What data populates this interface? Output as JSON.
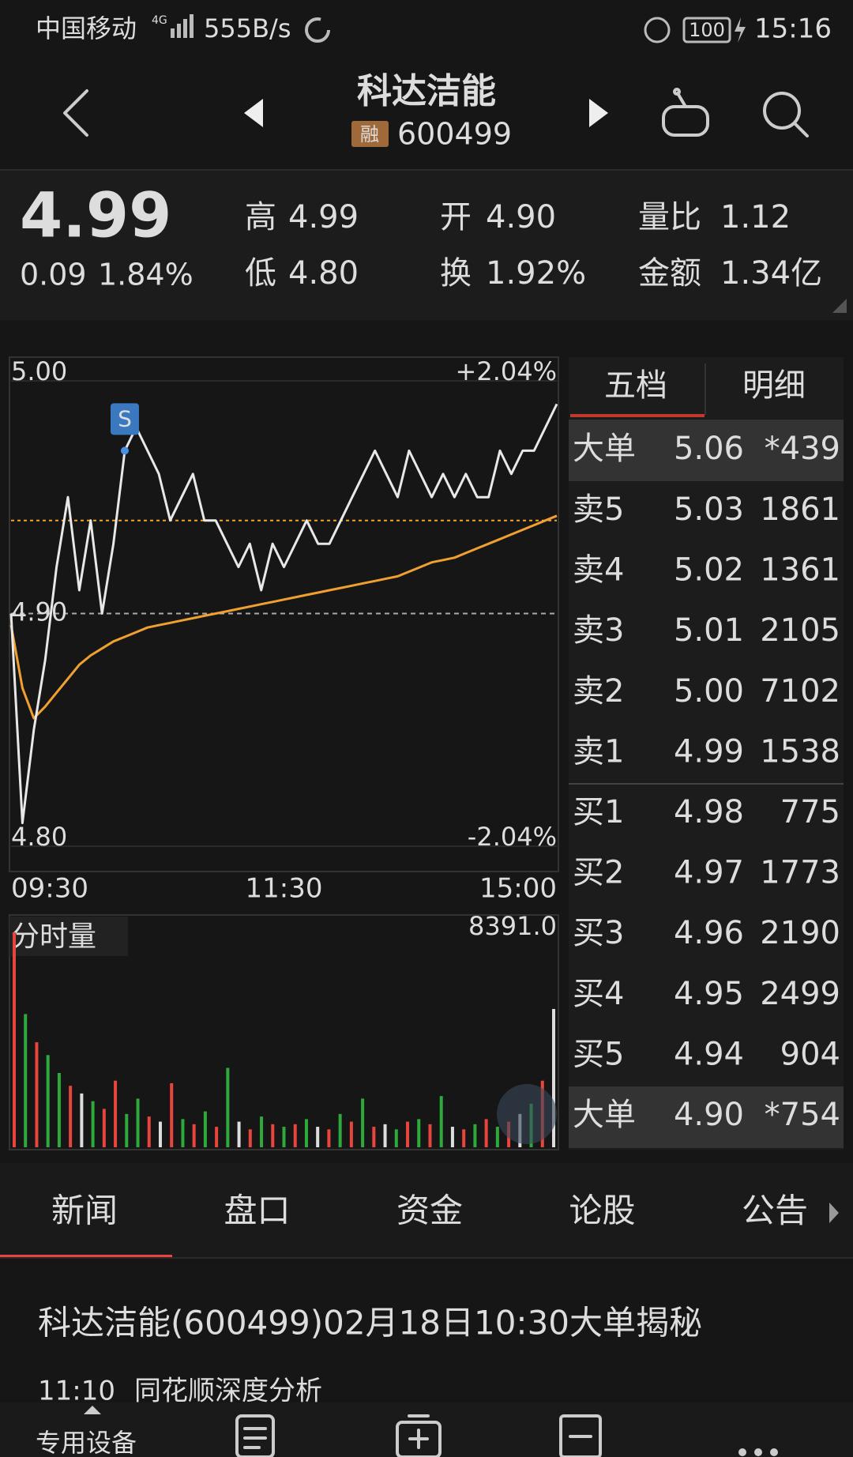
{
  "status_bar": {
    "carrier": "中国移动",
    "network": "4G",
    "speed": "555B/s",
    "battery": "100",
    "time": "15:16"
  },
  "header": {
    "title": "科达洁能",
    "badge": "融",
    "code": "600499"
  },
  "quote": {
    "price": "4.99",
    "change": "0.09",
    "change_pct": "1.84%",
    "fields": [
      {
        "label": "高",
        "value": "4.99",
        "color": "#e8453c"
      },
      {
        "label": "低",
        "value": "4.80",
        "color": "#2eaa3c"
      },
      {
        "label": "开",
        "value": "4.90",
        "color": "#dddddd"
      },
      {
        "label": "换",
        "value": "1.92%",
        "color": "#dddddd"
      },
      {
        "label": "量比",
        "value": "1.12",
        "color": "#e8453c"
      },
      {
        "label": "金额",
        "value": "1.34亿",
        "color": "#dddddd"
      }
    ]
  },
  "chart_data": [
    {
      "type": "line",
      "ylim": [
        4.8,
        5.0
      ],
      "yticks": [
        {
          "value": 5,
          "label": "5.00"
        },
        {
          "value": 4.9,
          "label": "4.90"
        },
        {
          "value": 4.8,
          "label": "4.80"
        }
      ],
      "y2lim": [
        -2.04,
        2.04
      ],
      "y2ticks": [
        {
          "value": 2.04,
          "label": "+2.04%"
        },
        {
          "value": -2.04,
          "label": "-2.04%"
        }
      ],
      "hline": 4.94,
      "x": [
        "09:30",
        "09:35",
        "09:40",
        "09:45",
        "09:50",
        "09:55",
        "10:00",
        "10:05",
        "10:10",
        "10:15",
        "10:20",
        "10:25",
        "10:30",
        "10:35",
        "10:40",
        "10:45",
        "10:50",
        "10:55",
        "11:00",
        "11:05",
        "11:10",
        "11:15",
        "11:20",
        "11:25",
        "11:30",
        "13:05",
        "13:10",
        "13:15",
        "13:20",
        "13:25",
        "13:30",
        "13:35",
        "13:40",
        "13:45",
        "13:50",
        "13:55",
        "14:00",
        "14:05",
        "14:10",
        "14:15",
        "14:20",
        "14:25",
        "14:30",
        "14:35",
        "14:40",
        "14:45",
        "14:50",
        "14:55",
        "15:00"
      ],
      "xticks": [
        "09:30",
        "11:30",
        "15:00"
      ],
      "series": [
        {
          "color": "#e8e8e8",
          "values": [
            4.9,
            4.81,
            4.85,
            4.88,
            4.92,
            4.95,
            4.91,
            4.94,
            4.9,
            4.93,
            4.97,
            4.98,
            4.97,
            4.96,
            4.94,
            4.95,
            4.96,
            4.94,
            4.94,
            4.93,
            4.92,
            4.93,
            4.91,
            4.93,
            4.92,
            4.93,
            4.94,
            4.93,
            4.93,
            4.94,
            4.95,
            4.96,
            4.97,
            4.96,
            4.95,
            4.97,
            4.96,
            4.95,
            4.96,
            4.95,
            4.96,
            4.95,
            4.95,
            4.97,
            4.96,
            4.97,
            4.97,
            4.98,
            4.99
          ]
        },
        {
          "color": "#f0a030",
          "values": [
            4.895,
            4.868,
            4.855,
            4.86,
            4.866,
            4.872,
            4.878,
            4.882,
            4.885,
            4.888,
            4.89,
            4.892,
            4.894,
            4.895,
            4.896,
            4.897,
            4.898,
            4.899,
            4.9,
            4.901,
            4.902,
            4.903,
            4.904,
            4.905,
            4.906,
            4.907,
            4.908,
            4.909,
            4.91,
            4.911,
            4.912,
            4.913,
            4.914,
            4.915,
            4.916,
            4.918,
            4.92,
            4.922,
            4.923,
            4.924,
            4.926,
            4.928,
            4.93,
            4.932,
            4.934,
            4.936,
            4.938,
            4.94,
            4.942
          ]
        }
      ],
      "annotations": [
        {
          "text": "S",
          "x": "10:20",
          "y": 4.97
        }
      ]
    },
    {
      "type": "bar",
      "title": "分时量",
      "ylim": [
        0,
        8391
      ],
      "yticks": [
        {
          "value": 8391,
          "label": "8391.0"
        }
      ],
      "values": [
        8391,
        5200,
        4100,
        3600,
        2900,
        2400,
        2100,
        1800,
        1500,
        2600,
        1300,
        1900,
        1200,
        1000,
        2500,
        1100,
        900,
        1400,
        800,
        3100,
        1000,
        700,
        1200,
        900,
        800,
        900,
        1100,
        800,
        700,
        1300,
        1000,
        1900,
        800,
        900,
        700,
        1000,
        1100,
        900,
        2000,
        800,
        700,
        900,
        1100,
        800,
        1000,
        1300,
        1700,
        2600,
        5400
      ],
      "bar_colors": [
        "#e8453c",
        "#2eaa3c",
        "#e8453c",
        "#2eaa3c",
        "#2eaa3c",
        "#e8453c",
        "#dddddd",
        "#2eaa3c",
        "#e8453c",
        "#e8453c",
        "#2eaa3c",
        "#2eaa3c",
        "#e8453c",
        "#dddddd",
        "#e8453c",
        "#2eaa3c",
        "#e8453c",
        "#2eaa3c",
        "#e8453c",
        "#2eaa3c",
        "#dddddd",
        "#e8453c",
        "#2eaa3c",
        "#e8453c",
        "#2eaa3c",
        "#e8453c",
        "#2eaa3c",
        "#dddddd",
        "#e8453c",
        "#2eaa3c",
        "#e8453c",
        "#2eaa3c",
        "#e8453c",
        "#dddddd",
        "#2eaa3c",
        "#e8453c",
        "#2eaa3c",
        "#e8453c",
        "#2eaa3c",
        "#dddddd",
        "#e8453c",
        "#2eaa3c",
        "#e8453c",
        "#2eaa3c",
        "#e8453c",
        "#dddddd",
        "#2eaa3c",
        "#e8453c",
        "#dddddd"
      ]
    }
  ],
  "order_book": {
    "tabs": [
      "五档",
      "明细"
    ],
    "top": {
      "label": "大单",
      "price": "5.06",
      "volume": "*439"
    },
    "rows": [
      {
        "label": "卖5",
        "price": "5.03",
        "volume": "1861"
      },
      {
        "label": "卖4",
        "price": "5.02",
        "volume": "1361"
      },
      {
        "label": "卖3",
        "price": "5.01",
        "volume": "2105"
      },
      {
        "label": "卖2",
        "price": "5.00",
        "volume": "7102"
      },
      {
        "label": "卖1",
        "price": "4.99",
        "volume": "1538"
      },
      {
        "label": "买1",
        "price": "4.98",
        "volume": "775"
      },
      {
        "label": "买2",
        "price": "4.97",
        "volume": "1773"
      },
      {
        "label": "买3",
        "price": "4.96",
        "volume": "2190"
      },
      {
        "label": "买4",
        "price": "4.95",
        "volume": "2499"
      },
      {
        "label": "买5",
        "price": "4.94",
        "volume": "904"
      }
    ],
    "bottom": {
      "label": "大单",
      "price": "4.90",
      "volume": "*754"
    }
  },
  "tabs": [
    "新闻",
    "盘口",
    "资金",
    "论股",
    "公告"
  ],
  "news": {
    "headline": "科达洁能(600499)02月18日10:30大单揭秘",
    "time": "11:10",
    "source": "同花顺深度分析"
  },
  "bottom_bar": {
    "label": "专用设备"
  }
}
